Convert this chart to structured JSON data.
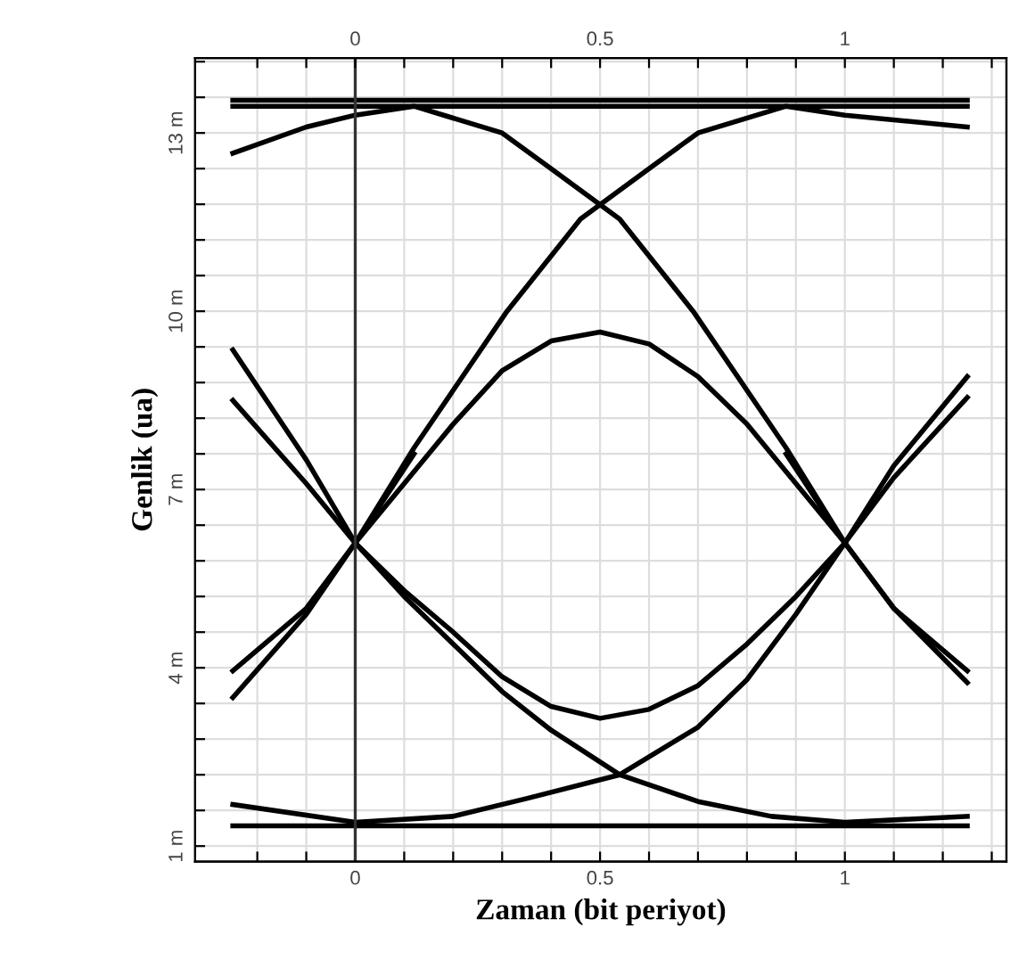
{
  "chart_data": {
    "type": "line",
    "xlabel": "Zaman (bit periyot)",
    "ylabel": "Genlik (ua)",
    "xlim": [
      -0.327,
      1.33
    ],
    "ylim": [
      0.74,
      14.26
    ],
    "xticks": [
      {
        "value": -0.2,
        "label": null
      },
      {
        "value": -0.1,
        "label": null
      },
      0,
      {
        "value": 0.1,
        "label": null
      },
      {
        "value": 0.2,
        "label": null
      },
      {
        "value": 0.3,
        "label": null
      },
      {
        "value": 0.4,
        "label": null
      },
      0.5,
      {
        "value": 0.6,
        "label": null
      },
      {
        "value": 0.7,
        "label": null
      },
      {
        "value": 0.8,
        "label": null
      },
      {
        "value": 0.9,
        "label": null
      },
      1,
      {
        "value": 1.1,
        "label": null
      },
      {
        "value": 1.2,
        "label": null
      },
      {
        "value": 1.3,
        "label": null
      }
    ],
    "x2lim": [
      -0.327,
      1.33
    ],
    "x2ticks": [
      {
        "value": -0.2,
        "label": null
      },
      {
        "value": -0.1,
        "label": null
      },
      0,
      {
        "value": 0.1,
        "label": null
      },
      {
        "value": 0.2,
        "label": null
      },
      {
        "value": 0.3,
        "label": null
      },
      {
        "value": 0.4,
        "label": null
      },
      0.5,
      {
        "value": 0.6,
        "label": null
      },
      {
        "value": 0.7,
        "label": null
      },
      {
        "value": 0.8,
        "label": null
      },
      {
        "value": 0.9,
        "label": null
      },
      1,
      {
        "value": 1.1,
        "label": null
      },
      {
        "value": 1.2,
        "label": null
      },
      {
        "value": 1.3,
        "label": null
      }
    ],
    "yticks": [
      {
        "value": 1,
        "label": "1 m"
      },
      {
        "value": 1.6,
        "label": null
      },
      {
        "value": 2.2,
        "label": null
      },
      {
        "value": 2.8,
        "label": null
      },
      {
        "value": 3.4,
        "label": null
      },
      {
        "value": 4,
        "label": "4 m"
      },
      {
        "value": 4.6,
        "label": null
      },
      {
        "value": 5.2,
        "label": null
      },
      {
        "value": 5.8,
        "label": null
      },
      {
        "value": 6.4,
        "label": null
      },
      {
        "value": 7,
        "label": "7 m"
      },
      {
        "value": 7.6,
        "label": null
      },
      {
        "value": 8.2,
        "label": null
      },
      {
        "value": 8.8,
        "label": null
      },
      {
        "value": 9.4,
        "label": null
      },
      {
        "value": 10,
        "label": "10 m"
      },
      {
        "value": 10.6,
        "label": null
      },
      {
        "value": 11.2,
        "label": null
      },
      {
        "value": 11.8,
        "label": null
      },
      {
        "value": 12.4,
        "label": null
      },
      {
        "value": 13,
        "label": "13 m"
      },
      {
        "value": 13.6,
        "label": null
      },
      {
        "value": 14.2,
        "label": null
      }
    ],
    "grid": true,
    "legend": false,
    "ref_lines": [
      {
        "axis": "x",
        "value": 0,
        "color": "#333333"
      }
    ],
    "series": [
      {
        "color": "#000000",
        "x": [
          -0.25,
          1.25
        ],
        "values": [
          13.55,
          13.55
        ]
      },
      {
        "color": "#000000",
        "x": [
          -0.25,
          1.25
        ],
        "values": [
          13.45,
          13.45
        ]
      },
      {
        "color": "#000000",
        "x": [
          -0.25,
          -0.1,
          0,
          0.12,
          0.3,
          0.4,
          0.54,
          0.69,
          0.88,
          1.0,
          1.1,
          1.25
        ],
        "values": [
          12.66,
          13.1,
          13.3,
          13.45,
          13.0,
          12.4,
          11.55,
          10.0,
          7.7,
          6.1,
          5.0,
          3.95
        ]
      },
      {
        "color": "#000000",
        "x": [
          0.88,
          1.0,
          1.1,
          1.25
        ],
        "values": [
          7.6,
          6.1,
          5.0,
          3.75
        ]
      },
      {
        "color": "#000000",
        "x": [
          -0.25,
          -0.1,
          0,
          0.12,
          0.31,
          0.46,
          0.6,
          0.7,
          0.88,
          1.0,
          1.25
        ],
        "values": [
          3.95,
          5.0,
          6.1,
          7.7,
          10.0,
          11.55,
          12.4,
          13.0,
          13.45,
          13.3,
          13.1
        ]
      },
      {
        "color": "#000000",
        "x": [
          -0.25,
          -0.1,
          0,
          0.12
        ],
        "values": [
          3.5,
          4.9,
          6.1,
          7.6
        ]
      },
      {
        "color": "#000000",
        "x": [
          0,
          0.1,
          0.2,
          0.3,
          0.4,
          0.5,
          0.6,
          0.7,
          0.8,
          0.9,
          1.0
        ],
        "values": [
          6.1,
          7.1,
          8.1,
          9.0,
          9.5,
          9.65,
          9.45,
          8.9,
          8.1,
          7.1,
          6.1
        ]
      },
      {
        "color": "#000000",
        "x": [
          -0.25,
          -0.1,
          0,
          0.1,
          0.2,
          0.3,
          0.4,
          0.5,
          0.6,
          0.7,
          0.8,
          0.9,
          1.0,
          1.1,
          1.25
        ],
        "values": [
          8.5,
          7.1,
          6.1,
          5.3,
          4.6,
          3.85,
          3.35,
          3.15,
          3.3,
          3.7,
          4.4,
          5.2,
          6.1,
          7.2,
          8.55
        ]
      },
      {
        "color": "#000000",
        "x": [
          -0.25,
          -0.1,
          0,
          0.1,
          0.2,
          0.3,
          0.4,
          0.54,
          0.7,
          0.85,
          1.0,
          1.25
        ],
        "values": [
          9.35,
          7.5,
          6.1,
          5.2,
          4.4,
          3.6,
          2.95,
          2.2,
          1.75,
          1.5,
          1.4,
          1.5
        ]
      },
      {
        "color": "#000000",
        "x": [
          -0.25,
          0,
          0.2,
          0.35,
          0.54,
          0.7,
          0.8,
          0.9,
          1.0,
          1.1,
          1.25
        ],
        "values": [
          1.7,
          1.4,
          1.5,
          1.8,
          2.2,
          3.0,
          3.8,
          4.9,
          6.1,
          7.4,
          8.9
        ]
      },
      {
        "color": "#000000",
        "x": [
          -0.25,
          1.25
        ],
        "values": [
          1.34,
          1.34
        ]
      }
    ]
  }
}
